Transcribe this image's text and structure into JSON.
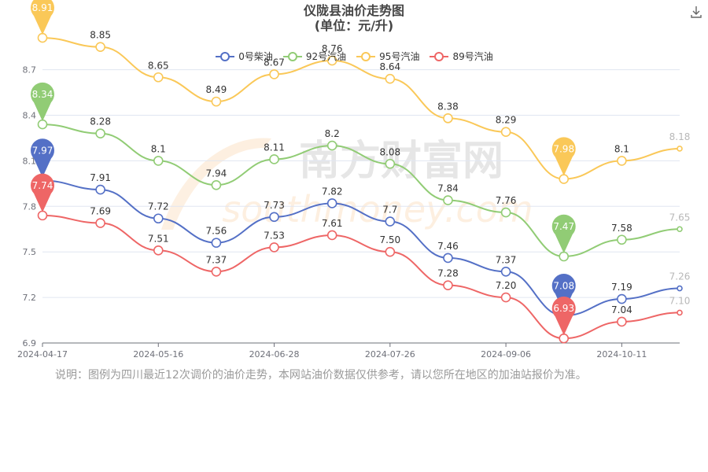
{
  "chart": {
    "title_line1": "仪陇县油价走势图",
    "title_line2": "(单位：元/升)",
    "note": "说明：图例为四川最近12次调价的油价走势，本网站油价数据仅供参考，请以您所在地区的加油站报价为准。",
    "watermark_cn": "南方财富网",
    "watermark_en": "southmoney.com"
  },
  "chart_data": {
    "type": "line",
    "x_tick_labels": [
      "2024-04-17",
      "2024-05-16",
      "2024-06-28",
      "2024-07-26",
      "2024-09-06",
      "2024-10-11"
    ],
    "x_tick_indices": [
      0,
      2,
      4,
      6,
      8,
      10
    ],
    "ylim": [
      6.9,
      8.9
    ],
    "y_ticks": [
      6.9,
      7.2,
      7.5,
      7.8,
      8.1,
      8.4,
      8.7
    ],
    "y_tick_labels": [
      "6.9",
      "7.2",
      "7.5",
      "7.8",
      "8.1",
      "8.4",
      "8.7"
    ],
    "grid": true,
    "legend_position": "top-center",
    "series": [
      {
        "name": "0号柴油",
        "color": "#5470c6",
        "values": [
          7.97,
          7.91,
          7.72,
          7.56,
          7.73,
          7.82,
          7.7,
          7.46,
          7.37,
          7.08,
          7.19,
          7.26
        ],
        "labels": [
          "",
          "7.91",
          "7.72",
          "7.56",
          "7.73",
          "7.82",
          "7.7",
          "7.46",
          "7.37",
          "",
          "7.19",
          "7.26"
        ],
        "min_pin": "7.08",
        "max_pin": "7.97",
        "min_index": 9,
        "max_index": 0
      },
      {
        "name": "92号汽油",
        "color": "#91cc75",
        "values": [
          8.34,
          8.28,
          8.1,
          7.94,
          8.11,
          8.2,
          8.08,
          7.84,
          7.76,
          7.47,
          7.58,
          7.65
        ],
        "labels": [
          "",
          "8.28",
          "8.1",
          "7.94",
          "8.11",
          "8.2",
          "8.08",
          "7.84",
          "7.76",
          "",
          "7.58",
          "7.65"
        ],
        "min_pin": "7.47",
        "max_pin": "8.34",
        "min_index": 9,
        "max_index": 0
      },
      {
        "name": "95号汽油",
        "color": "#fac858",
        "values": [
          8.91,
          8.85,
          8.65,
          8.49,
          8.67,
          8.76,
          8.64,
          8.38,
          8.29,
          7.98,
          8.1,
          8.18
        ],
        "labels": [
          "",
          "8.85",
          "8.65",
          "8.49",
          "8.67",
          "8.76",
          "8.64",
          "8.38",
          "8.29",
          "",
          "8.1",
          "8.18"
        ],
        "min_pin": "7.98",
        "max_pin": "8.91",
        "min_index": 9,
        "max_index": 0
      },
      {
        "name": "89号汽油",
        "color": "#ee6666",
        "values": [
          7.74,
          7.69,
          7.51,
          7.37,
          7.53,
          7.61,
          7.5,
          7.28,
          7.2,
          6.93,
          7.04,
          7.1
        ],
        "labels": [
          "",
          "7.69",
          "7.51",
          "7.37",
          "7.53",
          "7.61",
          "7.50",
          "7.28",
          "7.20",
          "",
          "7.04",
          "7.10"
        ],
        "min_pin": "6.93",
        "max_pin": "7.74",
        "min_index": 9,
        "max_index": 0
      }
    ]
  }
}
